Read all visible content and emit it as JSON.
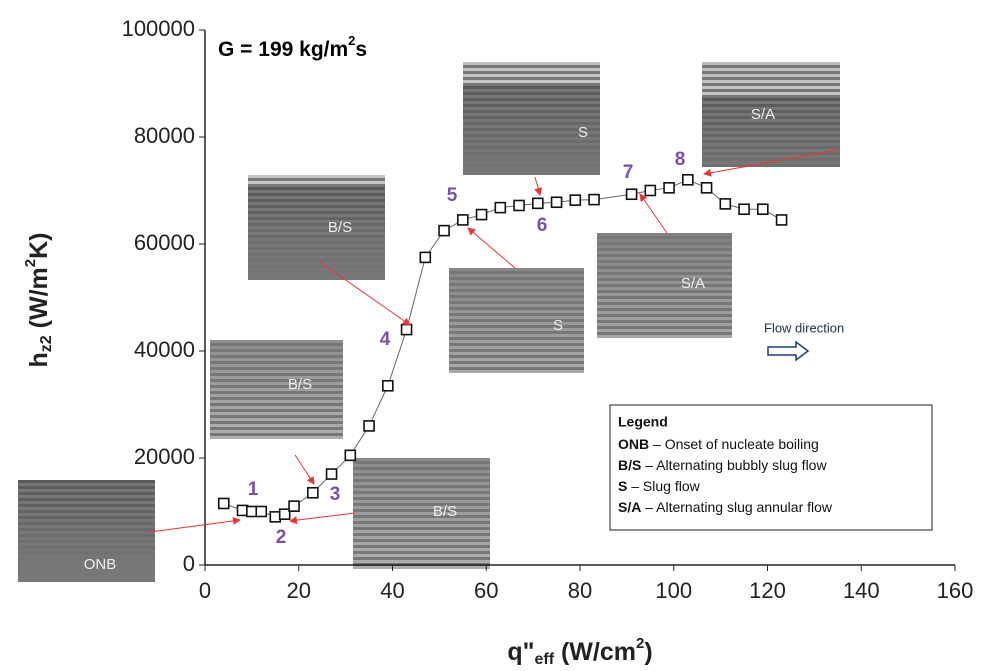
{
  "chart_data": {
    "type": "line",
    "title": [
      "G = 199 kg/m",
      "2",
      "s"
    ],
    "x_label": [
      "q\"",
      "eff",
      " (W/cm",
      "2",
      ")"
    ],
    "y_label": [
      "h",
      "z2",
      " (W/m",
      "2",
      "K)"
    ],
    "x": [
      4,
      8,
      10,
      12,
      15,
      17,
      19,
      23,
      27,
      31,
      35,
      39,
      43,
      47,
      51,
      55,
      59,
      63,
      67,
      71,
      75,
      79,
      83,
      91,
      95,
      99,
      103,
      107,
      111,
      115,
      119,
      123
    ],
    "series": [
      {
        "name": "hz2",
        "color": "#111111",
        "values": [
          11500,
          10200,
          10000,
          10000,
          9000,
          9500,
          11000,
          13500,
          17000,
          20500,
          26000,
          33500,
          44000,
          57500,
          62500,
          64500,
          65500,
          66800,
          67200,
          67600,
          67800,
          68200,
          68300,
          69300,
          70000,
          70500,
          72000,
          70500,
          67500,
          66500,
          66500,
          64500
        ]
      }
    ],
    "xlim": [
      0,
      160
    ],
    "xticks": [
      0,
      20,
      40,
      60,
      80,
      100,
      120,
      140,
      160
    ],
    "ylim": [
      0,
      100000
    ],
    "yticks": [
      0,
      20000,
      40000,
      60000,
      80000,
      100000
    ],
    "annotations": [
      "1",
      "2",
      "3",
      "4",
      "5",
      "6",
      "7",
      "8"
    ],
    "insets": [
      "ONB",
      "B/S",
      "B/S",
      "B/S",
      "S",
      "S",
      "S/A",
      "S/A"
    ],
    "flow_label": "Flow direction",
    "legend": {
      "title": "Legend",
      "items": [
        {
          "abbr": "ONB",
          "desc": " – Onset of nucleate boiling"
        },
        {
          "abbr": "B/S",
          "desc": " – Alternating bubbly slug flow"
        },
        {
          "abbr": "S",
          "desc": " – Slug flow"
        },
        {
          "abbr": "S/A",
          "desc": " – Alternating slug annular flow"
        }
      ]
    }
  }
}
